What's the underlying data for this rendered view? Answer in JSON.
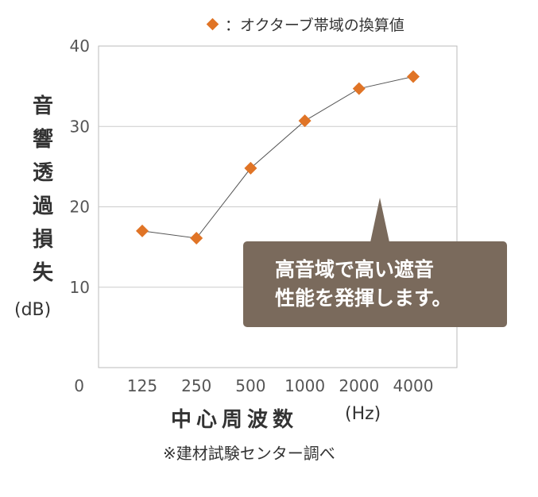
{
  "chart_data": {
    "type": "line",
    "categories": [
      "125",
      "250",
      "500",
      "1000",
      "2000",
      "4000"
    ],
    "series": [
      {
        "name": "：オクターブ帯域の換算値",
        "values": [
          17,
          16.1,
          24.8,
          30.7,
          34.7,
          36.2
        ],
        "color": "#e07426"
      }
    ],
    "yticks": [
      0,
      10,
      20,
      30,
      40
    ],
    "ylim": [
      0,
      40
    ],
    "grid": true,
    "legend_position": "top-right",
    "ylabel": "音響透過損失",
    "ylabel_unit": "(dB)",
    "xlabel": "中心周波数",
    "xlabel_unit": "(Hz)"
  },
  "legend_label": "：オクターブ帯域の換算値",
  "callout": {
    "text": "高音域で高い遮音\n性能を発揮します。",
    "bg_color": "#7a6a5c"
  },
  "source_note": "※建材試験センター調べ"
}
